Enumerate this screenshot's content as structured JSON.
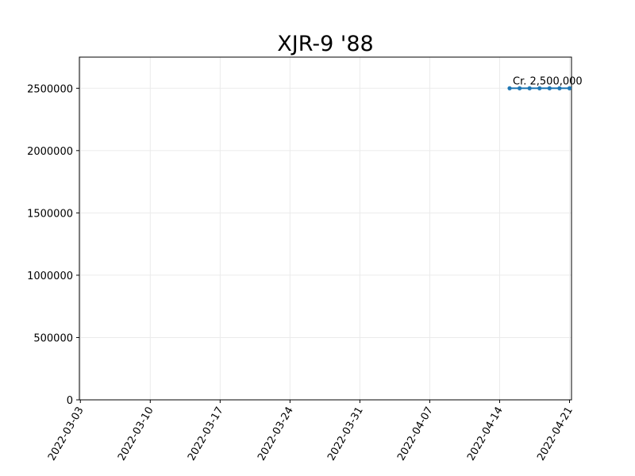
{
  "chart_data": {
    "type": "line",
    "title": "XJR-9 '88",
    "xlabel": "",
    "ylabel": "",
    "x_ticks": [
      "2022-03-03",
      "2022-03-10",
      "2022-03-17",
      "2022-03-24",
      "2022-03-31",
      "2022-04-07",
      "2022-04-14",
      "2022-04-21"
    ],
    "y_ticks": [
      "0",
      "500000",
      "1000000",
      "1500000",
      "2000000",
      "2500000"
    ],
    "xlim": [
      "2022-03-03",
      "2022-04-21"
    ],
    "ylim": [
      0,
      2750000
    ],
    "grid": true,
    "series": [
      {
        "x": [
          "2022-04-15",
          "2022-04-16",
          "2022-04-17",
          "2022-04-18",
          "2022-04-19",
          "2022-04-20",
          "2022-04-21"
        ],
        "values": [
          2500000,
          2500000,
          2500000,
          2500000,
          2500000,
          2500000,
          2500000
        ],
        "color": "#1f77b4"
      }
    ],
    "annotations": [
      {
        "text": "Cr. 2,500,000",
        "x": "2022-04-15",
        "y": 2500000
      }
    ]
  }
}
